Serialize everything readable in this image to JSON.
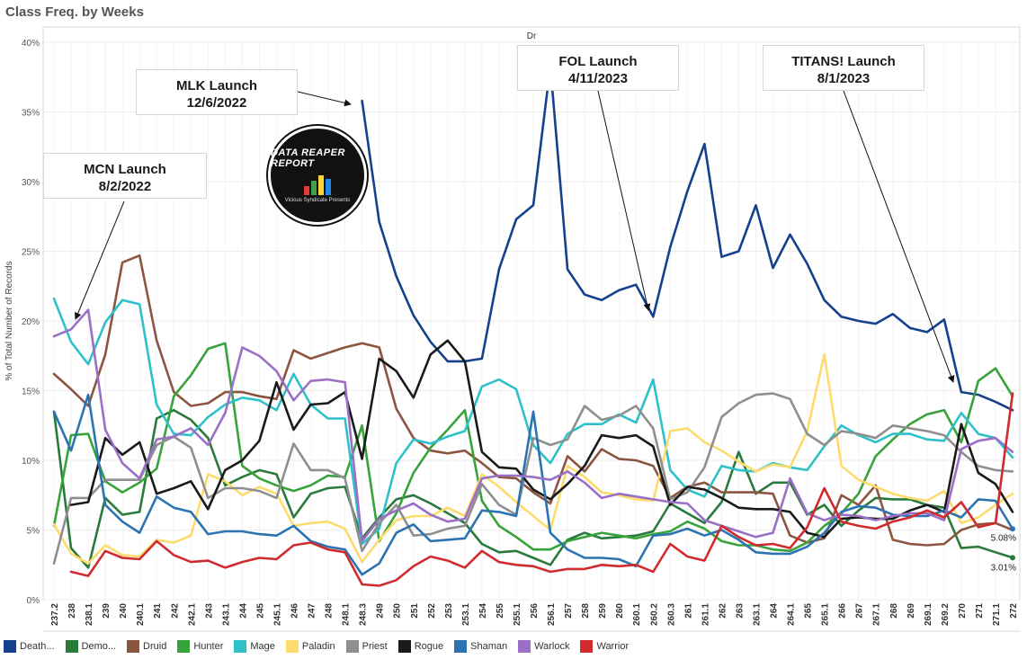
{
  "page_title": "Class Freq. by Weeks",
  "header_label": "Dr",
  "logo": {
    "text": "DATA REAPER REPORT",
    "subtext": "Vicious Syndicate Presents"
  },
  "annotations": [
    {
      "title": "MCN Launch",
      "date": "8/2/2022"
    },
    {
      "title": "MLK Launch",
      "date": "12/6/2022"
    },
    {
      "title": "FOL Launch",
      "date": "4/11/2023"
    },
    {
      "title": "TITANS! Launch",
      "date": "8/1/2023"
    }
  ],
  "end_labels": {
    "shaman": "5.08%",
    "demon_hunter": "3.01%"
  },
  "chart_data": {
    "type": "line",
    "title": "Class Freq. by Weeks",
    "xlabel": "",
    "ylabel": "% of Total Number of Records",
    "ylim": [
      0,
      40
    ],
    "yticks": [
      0,
      5,
      10,
      15,
      20,
      25,
      30,
      35,
      40
    ],
    "ytick_labels": [
      "0%",
      "5%",
      "10%",
      "15%",
      "20%",
      "25%",
      "30%",
      "35%",
      "40%"
    ],
    "grid": true,
    "legend_position": "bottom",
    "categories": [
      "237.2",
      "238",
      "238.1",
      "239",
      "240",
      "240.1",
      "241",
      "242",
      "242.1",
      "243",
      "243.1",
      "244",
      "245",
      "245.1",
      "246",
      "247",
      "248",
      "248.1",
      "248.3",
      "249",
      "250",
      "251",
      "252",
      "253",
      "253.1",
      "254",
      "255",
      "255.1",
      "256",
      "256.1",
      "257",
      "258",
      "259",
      "260",
      "260.1",
      "260.2",
      "260.3",
      "261",
      "261.1",
      "262",
      "263",
      "263.1",
      "264",
      "264.1",
      "265",
      "265.1",
      "266",
      "267",
      "267.1",
      "268",
      "269",
      "269.1",
      "269.2",
      "270",
      "271",
      "271.1",
      "272"
    ],
    "series": [
      {
        "name": "Death...",
        "color": "#15408e",
        "values": [
          null,
          null,
          null,
          null,
          null,
          null,
          null,
          null,
          null,
          null,
          null,
          null,
          null,
          null,
          null,
          null,
          null,
          null,
          35.8,
          27.1,
          23.2,
          20.4,
          18.5,
          17.1,
          17.1,
          17.3,
          23.7,
          27.3,
          28.3,
          38.3,
          23.7,
          21.9,
          21.5,
          22.2,
          22.6,
          20.3,
          25.3,
          29.3,
          32.7,
          24.6,
          25.0,
          28.3,
          23.8,
          26.2,
          24.1,
          21.5,
          20.3,
          20.0,
          19.8,
          20.5,
          19.5,
          19.2,
          20.1,
          14.9,
          14.7,
          14.2,
          13.6
        ]
      },
      {
        "name": "Demo...",
        "color": "#2a7a3b",
        "values": [
          13.5,
          3.7,
          2.3,
          7.3,
          6.1,
          6.3,
          13.0,
          13.6,
          12.9,
          11.6,
          8.2,
          8.8,
          9.3,
          9.0,
          5.9,
          7.6,
          8.0,
          8.1,
          4.4,
          5.9,
          7.2,
          7.5,
          6.9,
          6.2,
          5.5,
          4.0,
          3.4,
          3.5,
          3.0,
          2.5,
          4.3,
          4.8,
          4.4,
          4.5,
          4.6,
          4.9,
          6.9,
          6.2,
          5.5,
          7.0,
          10.6,
          7.6,
          8.4,
          8.4,
          6.1,
          6.8,
          5.3,
          6.4,
          7.3,
          7.2,
          7.2,
          6.8,
          6.6,
          3.7,
          3.8,
          3.4,
          3.01
        ]
      },
      {
        "name": "Druid",
        "color": "#8c5540",
        "values": [
          16.2,
          15.1,
          13.9,
          17.6,
          24.2,
          24.7,
          18.6,
          14.9,
          13.9,
          14.1,
          14.9,
          14.9,
          14.6,
          14.4,
          17.9,
          17.3,
          17.7,
          18.1,
          18.4,
          18.1,
          13.7,
          11.6,
          10.7,
          10.5,
          10.7,
          9.8,
          8.8,
          8.7,
          7.7,
          6.9,
          10.3,
          9.2,
          10.8,
          10.1,
          10.0,
          9.6,
          7.3,
          8.1,
          8.4,
          7.7,
          7.7,
          7.7,
          7.6,
          4.6,
          4.1,
          4.4,
          7.5,
          6.8,
          8.2,
          4.3,
          4.0,
          3.9,
          4.0,
          5.0,
          5.4,
          5.5,
          5.0
        ]
      },
      {
        "name": "Hunter",
        "color": "#38a23b",
        "values": [
          5.3,
          11.8,
          11.9,
          8.5,
          7.7,
          8.4,
          9.4,
          14.6,
          16.1,
          18.0,
          18.4,
          9.6,
          8.7,
          8.2,
          7.8,
          8.2,
          8.9,
          8.8,
          12.5,
          4.2,
          6.2,
          9.1,
          10.9,
          12.2,
          13.6,
          7.1,
          5.3,
          4.5,
          3.6,
          3.6,
          4.2,
          4.5,
          4.8,
          4.6,
          4.4,
          4.7,
          4.9,
          5.6,
          5.1,
          4.2,
          3.9,
          3.9,
          3.6,
          3.5,
          4.1,
          5.3,
          6.2,
          7.6,
          10.3,
          11.5,
          12.6,
          13.3,
          13.6,
          11.3,
          15.7,
          16.6,
          14.6
        ]
      },
      {
        "name": "Mage",
        "color": "#2fc1c9",
        "values": [
          21.6,
          18.5,
          16.9,
          19.9,
          21.5,
          21.2,
          14.0,
          11.9,
          11.8,
          13.1,
          14.0,
          14.5,
          14.3,
          13.6,
          16.2,
          14.0,
          13.0,
          13.0,
          4.0,
          5.1,
          9.8,
          11.5,
          11.2,
          11.7,
          12.1,
          15.3,
          15.8,
          15.1,
          11.1,
          9.8,
          11.9,
          12.6,
          12.6,
          13.3,
          12.7,
          15.8,
          9.3,
          7.9,
          7.4,
          9.6,
          9.3,
          9.2,
          9.8,
          9.5,
          9.3,
          11.0,
          12.5,
          11.8,
          11.3,
          11.9,
          11.9,
          11.5,
          11.4,
          13.4,
          11.9,
          11.6,
          10.2
        ]
      },
      {
        "name": "Paladin",
        "color": "#fddb6d",
        "values": [
          5.4,
          3.3,
          2.6,
          3.9,
          3.2,
          3.1,
          4.3,
          4.1,
          4.6,
          9.0,
          8.5,
          7.5,
          8.1,
          7.6,
          5.3,
          5.5,
          5.6,
          5.1,
          2.7,
          4.3,
          5.7,
          6.0,
          6.0,
          6.6,
          6.0,
          9.0,
          8.1,
          7.0,
          6.0,
          5.0,
          9.6,
          8.8,
          7.7,
          7.5,
          7.2,
          7.1,
          12.1,
          12.3,
          11.3,
          10.7,
          9.9,
          9.2,
          9.7,
          9.5,
          12.1,
          17.6,
          9.6,
          8.6,
          8.1,
          7.6,
          7.3,
          7.1,
          7.8,
          5.5,
          5.9,
          6.8,
          7.6
        ]
      },
      {
        "name": "Priest",
        "color": "#8f8f8f",
        "values": [
          2.6,
          7.3,
          7.3,
          8.6,
          8.6,
          8.6,
          11.1,
          11.7,
          10.9,
          7.3,
          8.0,
          8.0,
          7.8,
          7.3,
          11.2,
          9.3,
          9.3,
          8.7,
          3.5,
          5.5,
          6.8,
          4.6,
          4.7,
          5.1,
          5.3,
          8.3,
          6.8,
          6.1,
          11.6,
          11.1,
          11.5,
          13.9,
          12.9,
          13.2,
          13.9,
          12.3,
          7.2,
          7.7,
          9.5,
          13.1,
          14.1,
          14.7,
          14.8,
          14.4,
          11.9,
          11.1,
          12.1,
          11.9,
          11.6,
          12.5,
          12.3,
          12.1,
          11.8,
          10.6,
          9.6,
          9.3,
          9.2
        ]
      },
      {
        "name": "Rogue",
        "color": "#1a1a1a",
        "values": [
          null,
          6.8,
          7.0,
          11.6,
          10.4,
          11.3,
          7.6,
          8.0,
          8.5,
          6.5,
          9.3,
          10.0,
          11.4,
          15.6,
          12.2,
          14.0,
          14.1,
          14.9,
          10.1,
          17.3,
          16.4,
          14.5,
          17.6,
          18.6,
          17.1,
          10.6,
          9.5,
          9.4,
          7.9,
          7.2,
          8.3,
          9.6,
          11.8,
          11.6,
          11.8,
          11.0,
          6.8,
          8.1,
          7.9,
          7.3,
          6.6,
          6.5,
          6.5,
          6.3,
          4.8,
          4.5,
          5.8,
          5.9,
          5.8,
          5.8,
          6.4,
          6.8,
          6.3,
          12.6,
          9.1,
          8.3,
          6.3
        ]
      },
      {
        "name": "Shaman",
        "color": "#2c74b1",
        "values": [
          13.5,
          10.7,
          14.7,
          6.8,
          5.6,
          4.8,
          7.4,
          6.6,
          6.3,
          4.7,
          4.9,
          4.9,
          4.7,
          4.6,
          5.3,
          4.2,
          3.8,
          3.6,
          1.8,
          2.6,
          4.8,
          5.4,
          4.2,
          4.3,
          4.4,
          6.4,
          6.3,
          6.0,
          13.5,
          4.8,
          3.6,
          3.0,
          3.0,
          2.9,
          2.4,
          4.6,
          4.7,
          5.1,
          4.6,
          5.0,
          4.3,
          3.4,
          3.3,
          3.3,
          3.8,
          4.8,
          6.3,
          6.7,
          6.6,
          6.1,
          6.0,
          6.0,
          6.4,
          5.9,
          7.2,
          7.1,
          5.08
        ]
      },
      {
        "name": "Warlock",
        "color": "#9b6fc6",
        "values": [
          18.9,
          19.4,
          20.8,
          12.2,
          9.8,
          8.7,
          11.5,
          11.7,
          12.3,
          11.1,
          13.4,
          18.1,
          17.5,
          16.4,
          14.3,
          15.7,
          15.8,
          15.6,
          4.2,
          5.8,
          6.4,
          6.9,
          6.1,
          5.6,
          5.8,
          8.7,
          8.9,
          8.9,
          8.8,
          8.6,
          9.2,
          8.4,
          7.3,
          7.6,
          7.4,
          7.2,
          7.0,
          6.9,
          5.7,
          5.3,
          4.9,
          4.5,
          4.8,
          8.7,
          6.2,
          5.7,
          6.1,
          6.0,
          5.7,
          6.0,
          6.2,
          6.2,
          5.7,
          10.8,
          11.4,
          11.6,
          10.6
        ]
      },
      {
        "name": "Warrior",
        "color": "#d12b2e",
        "values": [
          null,
          2.0,
          1.7,
          3.5,
          3.0,
          2.9,
          4.2,
          3.2,
          2.7,
          2.8,
          2.3,
          2.7,
          3.0,
          2.9,
          3.9,
          4.1,
          3.6,
          3.4,
          1.1,
          1.0,
          1.4,
          2.4,
          3.1,
          2.8,
          2.3,
          3.5,
          2.7,
          2.5,
          2.4,
          2.0,
          2.2,
          2.2,
          2.5,
          2.4,
          2.5,
          2.0,
          4.0,
          3.1,
          2.8,
          5.3,
          4.5,
          3.9,
          4.0,
          3.7,
          5.2,
          8.0,
          5.6,
          5.3,
          5.1,
          5.6,
          5.9,
          6.4,
          5.9,
          7.0,
          5.2,
          5.5,
          14.8
        ]
      }
    ]
  }
}
